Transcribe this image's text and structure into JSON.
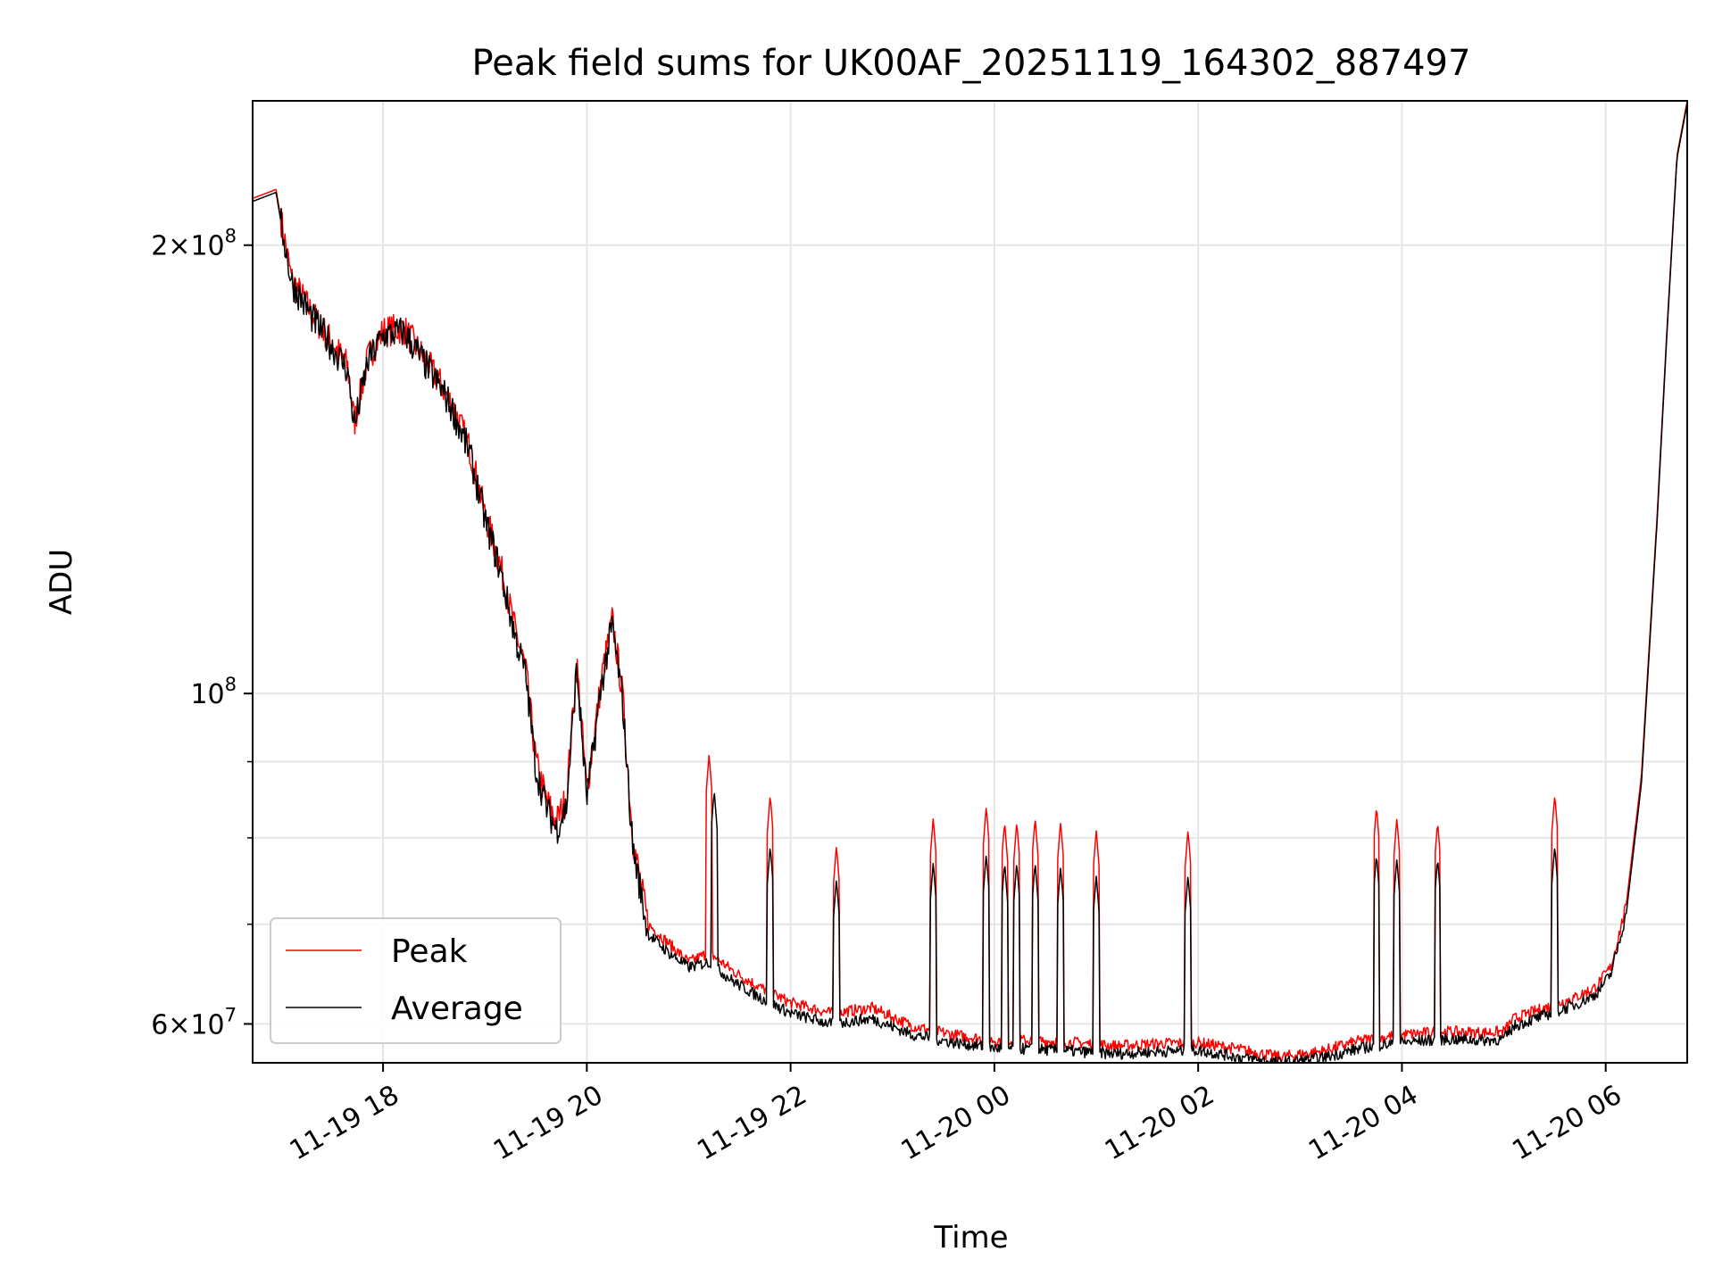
{
  "chart_data": {
    "type": "line",
    "title": "Peak field sums for UK00AF_20251119_164302_887497",
    "xlabel": "Time",
    "ylabel": "ADU",
    "x_unit": "hours after 2025-11-19 16:00",
    "xlim": [
      16.72,
      30.8
    ],
    "ylim": [
      56500000,
      250000000
    ],
    "y_scale": "log",
    "grid": true,
    "legend_position": "lower-left",
    "x_ticks": [
      {
        "value": 18,
        "label": "11-19 18"
      },
      {
        "value": 20,
        "label": "11-19 20"
      },
      {
        "value": 22,
        "label": "11-19 22"
      },
      {
        "value": 24,
        "label": "11-20 00"
      },
      {
        "value": 26,
        "label": "11-20 02"
      },
      {
        "value": 28,
        "label": "11-20 04"
      },
      {
        "value": 30,
        "label": "11-20 06"
      }
    ],
    "y_major_ticks": [
      {
        "value": 60000000,
        "mantissa": "6",
        "exp": "7"
      },
      {
        "value": 100000000,
        "mantissa": "",
        "exp": "8"
      },
      {
        "value": 200000000,
        "mantissa": "2",
        "exp": "8"
      }
    ],
    "y_minor_ticks": [
      70000000,
      80000000,
      90000000
    ],
    "series": [
      {
        "name": "Peak",
        "color": "#ff0000",
        "points": [
          [
            16.72,
            215000000
          ],
          [
            16.95,
            218000000
          ],
          [
            17.0,
            208000000
          ],
          [
            17.1,
            190000000
          ],
          [
            17.3,
            180000000
          ],
          [
            17.5,
            172000000
          ],
          [
            17.65,
            166000000
          ],
          [
            17.72,
            152000000
          ],
          [
            17.85,
            168000000
          ],
          [
            18.0,
            175000000
          ],
          [
            18.2,
            176000000
          ],
          [
            18.4,
            168000000
          ],
          [
            18.6,
            160000000
          ],
          [
            18.7,
            155000000
          ],
          [
            18.85,
            146000000
          ],
          [
            19.0,
            132000000
          ],
          [
            19.15,
            122000000
          ],
          [
            19.3,
            110000000
          ],
          [
            19.4,
            104000000
          ],
          [
            19.5,
            90000000
          ],
          [
            19.6,
            85000000
          ],
          [
            19.7,
            82000000
          ],
          [
            19.8,
            85000000
          ],
          [
            19.9,
            105000000
          ],
          [
            20.0,
            86000000
          ],
          [
            20.15,
            103000000
          ],
          [
            20.25,
            112000000
          ],
          [
            20.35,
            100000000
          ],
          [
            20.45,
            80000000
          ],
          [
            20.6,
            70000000
          ],
          [
            20.8,
            68000000
          ],
          [
            21.0,
            66000000
          ],
          [
            21.2,
            67000000
          ],
          [
            21.45,
            65000000
          ],
          [
            21.7,
            63500000
          ],
          [
            22.0,
            62000000
          ],
          [
            22.4,
            61000000
          ],
          [
            22.8,
            61500000
          ],
          [
            23.2,
            59800000
          ],
          [
            23.6,
            59000000
          ],
          [
            24.0,
            58500000
          ],
          [
            24.4,
            58500000
          ],
          [
            24.8,
            58300000
          ],
          [
            25.2,
            58000000
          ],
          [
            25.6,
            58200000
          ],
          [
            26.0,
            58300000
          ],
          [
            26.4,
            57700000
          ],
          [
            26.8,
            57000000
          ],
          [
            27.2,
            57500000
          ],
          [
            27.6,
            58500000
          ],
          [
            28.0,
            59000000
          ],
          [
            28.4,
            59300000
          ],
          [
            28.8,
            59200000
          ],
          [
            29.0,
            59300000
          ],
          [
            29.1,
            60500000
          ],
          [
            29.4,
            61500000
          ],
          [
            29.7,
            62500000
          ],
          [
            29.9,
            63500000
          ],
          [
            30.05,
            65500000
          ],
          [
            30.2,
            72000000
          ],
          [
            30.35,
            88000000
          ],
          [
            30.5,
            130000000
          ],
          [
            30.6,
            175000000
          ],
          [
            30.7,
            230000000
          ],
          [
            30.8,
            250000000
          ]
        ],
        "spikes": [
          [
            21.2,
            91000000
          ],
          [
            21.8,
            85500000
          ],
          [
            22.45,
            79000000
          ],
          [
            23.4,
            82500000
          ],
          [
            23.92,
            84000000
          ],
          [
            24.1,
            82000000
          ],
          [
            24.22,
            82000000
          ],
          [
            24.4,
            82500000
          ],
          [
            24.65,
            82000000
          ],
          [
            25.0,
            81000000
          ],
          [
            25.9,
            81000000
          ],
          [
            27.75,
            84000000
          ],
          [
            27.95,
            82500000
          ],
          [
            28.35,
            82000000
          ],
          [
            29.5,
            85500000
          ]
        ]
      },
      {
        "name": "Average",
        "color": "#000000",
        "points": [
          [
            16.72,
            214000000
          ],
          [
            16.95,
            217000000
          ],
          [
            17.0,
            207000000
          ],
          [
            17.1,
            189000000
          ],
          [
            17.3,
            179000000
          ],
          [
            17.5,
            171000000
          ],
          [
            17.65,
            165000000
          ],
          [
            17.72,
            151000000
          ],
          [
            17.85,
            167000000
          ],
          [
            18.0,
            174000000
          ],
          [
            18.2,
            175000000
          ],
          [
            18.4,
            167000000
          ],
          [
            18.6,
            159000000
          ],
          [
            18.7,
            154000000
          ],
          [
            18.85,
            145000000
          ],
          [
            19.0,
            131000000
          ],
          [
            19.15,
            121000000
          ],
          [
            19.3,
            109000000
          ],
          [
            19.4,
            103000000
          ],
          [
            19.5,
            89000000
          ],
          [
            19.6,
            84000000
          ],
          [
            19.7,
            81000000
          ],
          [
            19.8,
            84000000
          ],
          [
            19.9,
            104000000
          ],
          [
            20.0,
            85000000
          ],
          [
            20.15,
            102000000
          ],
          [
            20.25,
            111000000
          ],
          [
            20.35,
            99000000
          ],
          [
            20.45,
            79000000
          ],
          [
            20.6,
            69000000
          ],
          [
            20.8,
            67000000
          ],
          [
            21.0,
            65500000
          ],
          [
            21.2,
            66000000
          ],
          [
            21.45,
            64000000
          ],
          [
            21.7,
            62500000
          ],
          [
            22.0,
            61000000
          ],
          [
            22.4,
            60000000
          ],
          [
            22.8,
            60500000
          ],
          [
            23.2,
            59000000
          ],
          [
            23.6,
            58300000
          ],
          [
            24.0,
            57800000
          ],
          [
            24.4,
            57700000
          ],
          [
            24.8,
            57500000
          ],
          [
            25.2,
            57300000
          ],
          [
            25.6,
            57500000
          ],
          [
            26.0,
            57600000
          ],
          [
            26.4,
            57000000
          ],
          [
            26.8,
            56500000
          ],
          [
            27.2,
            56900000
          ],
          [
            27.6,
            57800000
          ],
          [
            28.0,
            58300000
          ],
          [
            28.4,
            58600000
          ],
          [
            28.8,
            58500000
          ],
          [
            29.0,
            58600000
          ],
          [
            29.1,
            59800000
          ],
          [
            29.4,
            60800000
          ],
          [
            29.7,
            61800000
          ],
          [
            29.9,
            62800000
          ],
          [
            30.05,
            64800000
          ],
          [
            30.2,
            71000000
          ],
          [
            30.35,
            87000000
          ],
          [
            30.5,
            129000000
          ],
          [
            30.6,
            174000000
          ],
          [
            30.7,
            229000000
          ],
          [
            30.8,
            249000000
          ]
        ],
        "spikes": [
          [
            21.25,
            86000000
          ],
          [
            21.8,
            79000000
          ],
          [
            22.45,
            75000000
          ],
          [
            23.4,
            77000000
          ],
          [
            23.92,
            78000000
          ],
          [
            24.1,
            77000000
          ],
          [
            24.22,
            77000000
          ],
          [
            24.4,
            77000000
          ],
          [
            24.65,
            76500000
          ],
          [
            25.0,
            75500000
          ],
          [
            25.9,
            75500000
          ],
          [
            27.75,
            78000000
          ],
          [
            27.95,
            77500000
          ],
          [
            28.35,
            77500000
          ],
          [
            29.5,
            79000000
          ]
        ]
      }
    ]
  }
}
